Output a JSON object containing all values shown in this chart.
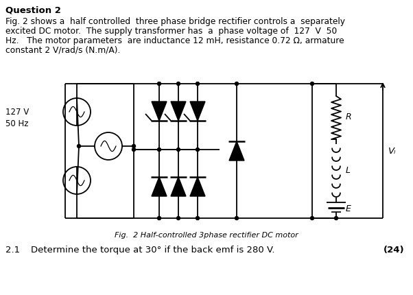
{
  "title": "Question 2",
  "para_line1": "Fig. 2 shows a  half controlled  three phase bridge rectifier controls a  separately",
  "para_line2": "excited DC motor.  The supply transformer has  a  phase voltage of  127  V  50",
  "para_line3": "Hz.   The motor parameters  are inductance 12 mH, resistance 0.72 Ω, armature",
  "para_line4": "constant 2 V/rad/s (N.m/A).",
  "fig_caption": "Fig.  2 Half-controlled 3phase rectifier DC motor",
  "question_number": "2.1",
  "question_text": "Determine the torque at 30° if the back emf is 280 V.",
  "marks": "(24)",
  "label_127V": "127 V",
  "label_50Hz": "50 Hz",
  "label_R": "R",
  "label_L": "L",
  "label_E": "E",
  "label_VL": "Vₗ",
  "bg_color": "#ffffff",
  "text_color": "#000000"
}
